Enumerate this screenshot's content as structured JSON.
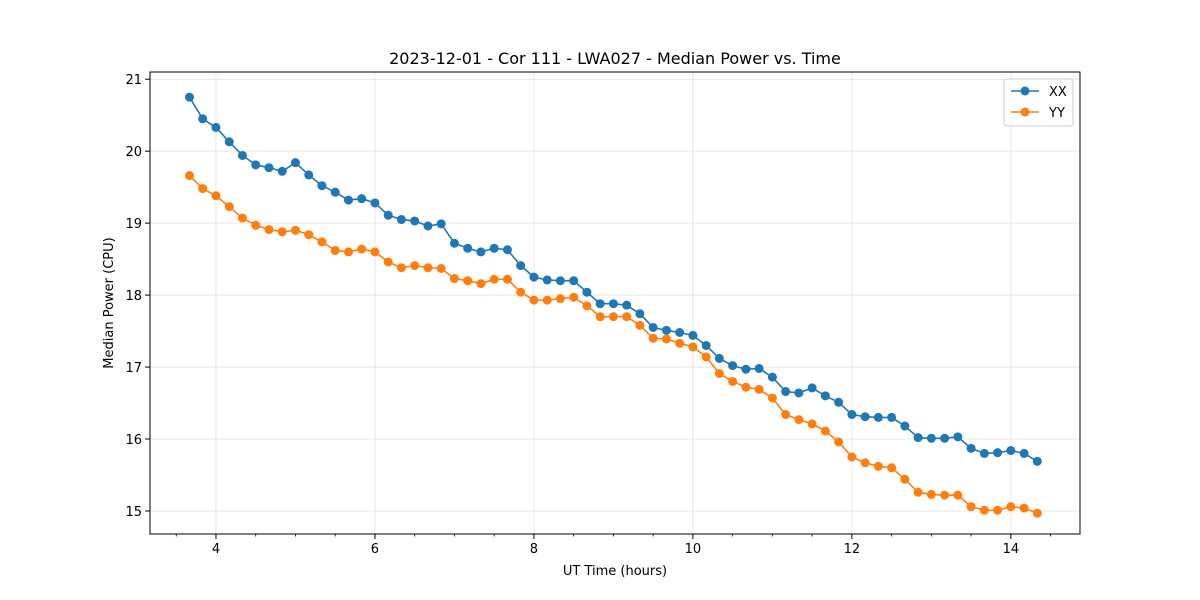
{
  "chart_data": {
    "type": "line",
    "title": "2023-12-01 - Cor 111 - LWA027 - Median Power vs. Time",
    "xlabel": "UT Time (hours)",
    "ylabel": "Median Power (CPU)",
    "xlim": [
      3.17,
      14.87
    ],
    "ylim": [
      14.68,
      21.1
    ],
    "xticks": [
      4,
      6,
      8,
      10,
      12,
      14
    ],
    "xtick_labels": [
      "4",
      "6",
      "8",
      "10",
      "12",
      "14"
    ],
    "yticks": [
      15,
      16,
      17,
      18,
      19,
      20,
      21
    ],
    "ytick_labels": [
      "15",
      "16",
      "17",
      "18",
      "19",
      "20",
      "21"
    ],
    "grid": true,
    "legend_position": "top-right",
    "x": [
      3.667,
      3.833,
      4.0,
      4.167,
      4.333,
      4.5,
      4.667,
      4.833,
      5.0,
      5.167,
      5.333,
      5.5,
      5.667,
      5.833,
      6.0,
      6.167,
      6.333,
      6.5,
      6.667,
      6.833,
      7.0,
      7.167,
      7.333,
      7.5,
      7.667,
      7.833,
      8.0,
      8.167,
      8.333,
      8.5,
      8.667,
      8.833,
      9.0,
      9.167,
      9.333,
      9.5,
      9.667,
      9.833,
      10.0,
      10.167,
      10.333,
      10.5,
      10.667,
      10.833,
      11.0,
      11.167,
      11.333,
      11.5,
      11.667,
      11.833,
      12.0,
      12.167,
      12.333,
      12.5,
      12.667,
      12.833,
      13.0,
      13.167,
      13.333,
      13.5,
      13.667,
      13.833,
      14.0,
      14.167,
      14.333
    ],
    "series": [
      {
        "name": "XX",
        "color": "#1f77b4",
        "values": [
          20.75,
          20.45,
          20.33,
          20.13,
          19.94,
          19.81,
          19.77,
          19.72,
          19.84,
          19.67,
          19.52,
          19.43,
          19.32,
          19.34,
          19.28,
          19.11,
          19.05,
          19.03,
          18.96,
          18.99,
          18.72,
          18.65,
          18.6,
          18.65,
          18.63,
          18.41,
          18.25,
          18.21,
          18.2,
          18.2,
          18.04,
          17.88,
          17.88,
          17.86,
          17.74,
          17.55,
          17.51,
          17.48,
          17.44,
          17.3,
          17.12,
          17.02,
          16.97,
          16.98,
          16.86,
          16.66,
          16.64,
          16.71,
          16.6,
          16.51,
          16.34,
          16.31,
          16.3,
          16.3,
          16.18,
          16.02,
          16.01,
          16.01,
          16.03,
          15.87,
          15.8,
          15.81,
          15.84,
          15.8,
          15.69
        ]
      },
      {
        "name": "YY",
        "color": "#ff7f0e",
        "values": [
          19.66,
          19.48,
          19.38,
          19.23,
          19.07,
          18.97,
          18.91,
          18.88,
          18.9,
          18.84,
          18.74,
          18.62,
          18.6,
          18.64,
          18.6,
          18.46,
          18.38,
          18.41,
          18.38,
          18.37,
          18.23,
          18.2,
          18.16,
          18.22,
          18.22,
          18.04,
          17.93,
          17.93,
          17.95,
          17.97,
          17.85,
          17.7,
          17.7,
          17.7,
          17.58,
          17.4,
          17.39,
          17.33,
          17.28,
          17.14,
          16.91,
          16.8,
          16.72,
          16.69,
          16.57,
          16.34,
          16.27,
          16.21,
          16.11,
          15.96,
          15.75,
          15.67,
          15.62,
          15.6,
          15.44,
          15.26,
          15.23,
          15.22,
          15.22,
          15.06,
          15.01,
          15.01,
          15.06,
          15.04,
          14.97
        ]
      }
    ]
  }
}
